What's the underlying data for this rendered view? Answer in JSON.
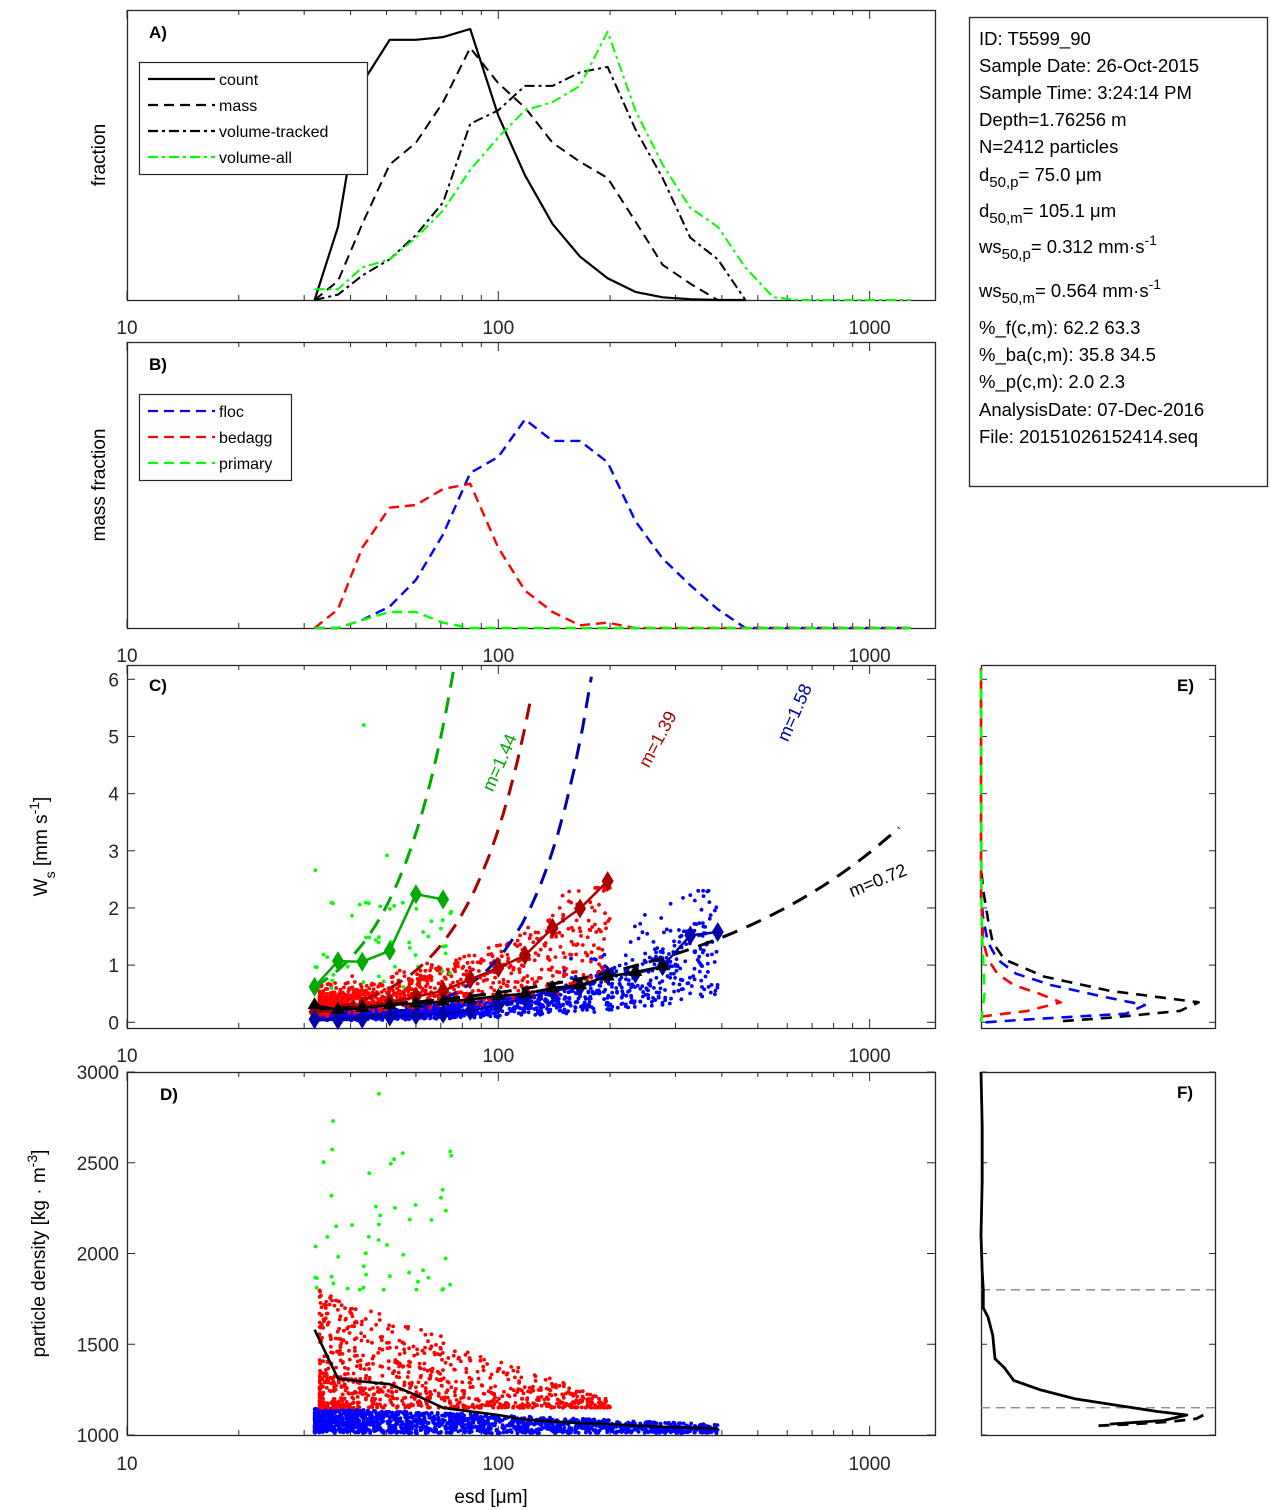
{
  "info_box": {
    "lines": [
      {
        "text": "ID: T5599_90"
      },
      {
        "text": "Sample Date: 26-Oct-2015"
      },
      {
        "text": "Sample Time:  3:24:14 PM"
      },
      {
        "text": "Depth=1.76256 m"
      },
      {
        "text": "N=2412 particles"
      },
      {
        "base": "d",
        "sub": "50,p",
        "rest": "=  75.0 μm"
      },
      {
        "base": "d",
        "sub": "50,m",
        "rest": "= 105.1 μm"
      },
      {
        "base": "ws",
        "sub": "50,p",
        "rest": "= 0.312 mm·s",
        "sup": "-1"
      },
      {
        "base": "ws",
        "sub": "50,m",
        "rest": "= 0.564 mm·s",
        "sup": "-1"
      },
      {
        "text": "%_f(c,m): 62.2 63.3"
      },
      {
        "text": "%_ba(c,m): 35.8 34.5"
      },
      {
        "text": "%_p(c,m): 2.0 2.3"
      },
      {
        "text": "AnalysisDate: 07-Dec-2016"
      },
      {
        "text": "File: 20151026152414.seq"
      }
    ]
  },
  "colors": {
    "black": "#000000",
    "green_bright": "#00ff00",
    "green_dark": "#00aa00",
    "red": "#ff0000",
    "dark_red": "#aa0000",
    "blue": "#0000ff",
    "dark_blue": "#0000aa",
    "gray_ref": "#808080"
  },
  "chart_data": [
    {
      "id": "A",
      "panel_label": "A)",
      "type": "line",
      "xscale": "log",
      "xlim": [
        10,
        1500
      ],
      "xticks": [
        10,
        100,
        1000
      ],
      "xtick_labels": [
        "10",
        "100",
        "1000"
      ],
      "ylabel": "fraction",
      "yticks": [],
      "ylim": [
        0,
        1.0
      ],
      "legend": {
        "placement": "top-left",
        "entries": [
          "count",
          "mass",
          "volume-tracked",
          "volume-all"
        ]
      },
      "x": [
        32,
        37,
        43,
        51,
        60,
        71,
        84,
        100,
        118,
        140,
        166,
        197,
        234,
        277,
        329,
        390,
        463,
        550,
        652,
        774,
        918,
        1089,
        1292
      ],
      "series": [
        {
          "name": "count",
          "style": "solid",
          "color": "#000000",
          "values": [
            0.0,
            0.27,
            0.8,
            0.96,
            0.96,
            0.97,
            1.0,
            0.68,
            0.46,
            0.28,
            0.16,
            0.08,
            0.03,
            0.01,
            0.003,
            0.0,
            0.0,
            null,
            null,
            null,
            null,
            null,
            null
          ]
        },
        {
          "name": "mass",
          "style": "dashed",
          "color": "#000000",
          "values": [
            0.0,
            0.07,
            0.28,
            0.5,
            0.58,
            0.73,
            0.93,
            0.8,
            0.71,
            0.58,
            0.51,
            0.45,
            0.29,
            0.13,
            0.06,
            0.0,
            0.0,
            null,
            null,
            null,
            null,
            null,
            null
          ]
        },
        {
          "name": "volume-tracked",
          "style": "dashdot",
          "color": "#000000",
          "values": [
            0.0,
            0.02,
            0.09,
            0.15,
            0.24,
            0.36,
            0.65,
            0.7,
            0.79,
            0.79,
            0.84,
            0.86,
            0.63,
            0.45,
            0.23,
            0.15,
            0.0,
            null,
            null,
            null,
            null,
            null,
            null
          ]
        },
        {
          "name": "volume-all",
          "style": "dashdot",
          "color": "#00ff00",
          "values": [
            0.04,
            0.04,
            0.12,
            0.15,
            0.23,
            0.33,
            0.48,
            0.6,
            0.7,
            0.73,
            0.79,
            0.99,
            0.7,
            0.5,
            0.34,
            0.27,
            0.12,
            0.01,
            0.0,
            0.0,
            0.0,
            0.0,
            0.0
          ]
        }
      ]
    },
    {
      "id": "B",
      "panel_label": "B)",
      "type": "line",
      "xscale": "log",
      "xlim": [
        10,
        1500
      ],
      "xticks": [
        10,
        100,
        1000
      ],
      "xtick_labels": [
        "10",
        "100",
        "1000"
      ],
      "ylabel": "mass fraction",
      "yticks": [],
      "ylim": [
        0,
        1.0
      ],
      "legend": {
        "placement": "top-left",
        "entries": [
          "floc",
          "bedagg",
          "primary"
        ]
      },
      "x": [
        32,
        37,
        43,
        51,
        60,
        71,
        84,
        100,
        118,
        140,
        166,
        197,
        234,
        277,
        329,
        390,
        463,
        550,
        652,
        774,
        918,
        1089,
        1292
      ],
      "series": [
        {
          "name": "floc",
          "style": "dashed",
          "color": "#0000ff",
          "values": [
            0.0,
            0.0,
            0.03,
            0.08,
            0.18,
            0.35,
            0.58,
            0.64,
            0.78,
            0.7,
            0.7,
            0.62,
            0.4,
            0.26,
            0.16,
            0.07,
            0.0,
            0.0,
            0.0,
            0.0,
            0.0,
            0.0,
            0.0
          ]
        },
        {
          "name": "bedagg",
          "style": "dashed",
          "color": "#ff0000",
          "values": [
            0.0,
            0.07,
            0.3,
            0.45,
            0.46,
            0.52,
            0.54,
            0.3,
            0.14,
            0.06,
            0.01,
            0.02,
            0.0,
            0.0,
            0.0,
            0.0,
            0.0,
            0.0,
            0.0,
            0.0,
            0.0,
            0.0,
            0.0
          ]
        },
        {
          "name": "primary",
          "style": "dashed",
          "color": "#00ff00",
          "values": [
            0.0,
            0.0,
            0.03,
            0.06,
            0.06,
            0.02,
            0.0,
            0.0,
            0.0,
            0.0,
            0.0,
            0.0,
            0.0,
            0.0,
            0.0,
            0.0,
            0.0,
            0.0,
            0.0,
            0.0,
            0.0,
            0.0,
            0.0
          ]
        }
      ]
    },
    {
      "id": "C",
      "panel_label": "C)",
      "type": "scatter",
      "xscale": "log",
      "xlim": [
        10,
        1500
      ],
      "xticks": [
        10,
        100,
        1000
      ],
      "xtick_labels": [
        "10",
        "100",
        "1000"
      ],
      "ylabel": "W_s [mm s^-1]",
      "ylim": [
        -0.1,
        6.25
      ],
      "yticks": [
        0,
        1,
        2,
        3,
        4,
        5,
        6
      ],
      "ytick_labels": [
        "0",
        "1",
        "2",
        "3",
        "4",
        "5",
        "6"
      ],
      "scatter_groups": [
        {
          "name": "floc",
          "color": "#0000ff",
          "count": 1500,
          "x_range": [
            32,
            380
          ],
          "y_typical": "0.05-1.0",
          "y_max": 2.3
        },
        {
          "name": "bedagg",
          "color": "#ff0000",
          "count": 860,
          "x_range": [
            32,
            200
          ],
          "y_typical": "0.1-1.4",
          "y_max": 2.35
        },
        {
          "name": "primary",
          "color": "#00ff00",
          "count": 52,
          "x_range": [
            32,
            75
          ],
          "y_typical": "0.5-2.0",
          "y_max": 5.2
        }
      ],
      "binned_means": [
        {
          "name": "primary",
          "color": "#00aa00",
          "x": [
            32,
            37,
            43,
            51,
            60,
            71
          ],
          "y": [
            0.62,
            1.07,
            1.06,
            1.25,
            2.24,
            2.15
          ]
        },
        {
          "name": "bedagg",
          "color": "#aa0000",
          "x": [
            32,
            37,
            43,
            51,
            60,
            71,
            84,
            100,
            118,
            140,
            166,
            197
          ],
          "y": [
            0.18,
            0.2,
            0.28,
            0.35,
            0.45,
            0.55,
            0.75,
            0.95,
            1.17,
            1.65,
            1.99,
            2.47
          ]
        },
        {
          "name": "floc",
          "color": "#0000aa",
          "x": [
            32,
            37,
            43,
            51,
            60,
            71,
            84,
            100,
            118,
            140,
            166,
            197,
            234,
            277,
            329,
            390
          ],
          "y": [
            0.05,
            0.04,
            0.06,
            0.1,
            0.12,
            0.15,
            0.2,
            0.3,
            0.42,
            0.55,
            0.62,
            0.82,
            0.85,
            0.98,
            1.52,
            1.58
          ]
        },
        {
          "name": "all",
          "color": "#000000",
          "x": [
            32,
            37,
            43,
            51,
            60,
            71,
            84,
            100,
            118,
            140,
            166,
            197,
            234,
            277
          ],
          "y": [
            0.3,
            0.22,
            0.25,
            0.3,
            0.33,
            0.36,
            0.4,
            0.46,
            0.5,
            0.6,
            0.65,
            0.8,
            0.88,
            0.98
          ]
        }
      ],
      "fits": [
        {
          "label": "m=1.44",
          "color": "#00aa00",
          "m": 1.44,
          "x_range": [
            32,
            140
          ],
          "y_at_xmin": 0.62
        },
        {
          "label": "m=1.39",
          "color": "#aa0000",
          "m": 1.39,
          "x_range": [
            32,
            430
          ],
          "y_at_xmin": 0.18
        },
        {
          "label": "m=1.58",
          "color": "#0000aa",
          "m": 1.58,
          "x_range": [
            32,
            800
          ],
          "y_at_xmin": 0.04
        },
        {
          "label": "m=0.72",
          "color": "#000000",
          "m": 0.72,
          "x_range": [
            32,
            1200
          ],
          "y_at_xmin": 0.22
        }
      ]
    },
    {
      "id": "D",
      "panel_label": "D)",
      "type": "scatter",
      "xscale": "log",
      "xlim": [
        10,
        1500
      ],
      "xticks": [
        10,
        100,
        1000
      ],
      "xtick_labels": [
        "10",
        "100",
        "1000"
      ],
      "xlabel": "esd [μm]",
      "ylabel": "particle density [kg · m^-3]",
      "ylim": [
        1000,
        3000
      ],
      "yticks": [
        1000,
        1500,
        2000,
        2500,
        3000
      ],
      "ytick_labels": [
        "1000",
        "1500",
        "2000",
        "2500",
        "3000"
      ],
      "scatter_groups": [
        {
          "name": "floc",
          "color": "#0000ff",
          "count": 1500,
          "x_range": [
            34,
            390
          ],
          "y_range": [
            1010,
            1150
          ]
        },
        {
          "name": "bedagg",
          "color": "#ff0000",
          "count": 860,
          "x_range": [
            33,
            200
          ],
          "y_range": [
            1150,
            1800
          ]
        },
        {
          "name": "primary",
          "color": "#00ff00",
          "count": 52,
          "x_range": [
            32,
            75
          ],
          "y_range": [
            1800,
            2880
          ]
        }
      ],
      "mean_line": {
        "color": "#000000",
        "x": [
          32,
          37,
          43,
          51,
          60,
          71,
          84,
          100,
          118,
          140,
          166,
          197,
          234,
          277,
          329,
          390
        ],
        "y": [
          1580,
          1310,
          1295,
          1280,
          1220,
          1150,
          1130,
          1110,
          1085,
          1075,
          1065,
          1060,
          1052,
          1045,
          1040,
          1035
        ]
      }
    },
    {
      "id": "E",
      "panel_label": "E)",
      "type": "line",
      "orientation": "horizontal-distribution",
      "ylim": [
        -0.1,
        6.25
      ],
      "yticks": [
        0,
        1,
        2,
        3,
        4,
        5,
        6
      ],
      "ytick_labels": [],
      "xlim": [
        0,
        1.0
      ],
      "series": [
        {
          "name": "all",
          "color": "#000000",
          "style": "dashed",
          "y": [
            0.02,
            0.08,
            0.2,
            0.35,
            0.55,
            0.8,
            1.1,
            1.4,
            1.8,
            2.3,
            2.7
          ],
          "x": [
            0.35,
            0.55,
            0.85,
            0.93,
            0.55,
            0.27,
            0.1,
            0.05,
            0.03,
            0.01,
            0.0
          ]
        },
        {
          "name": "floc",
          "color": "#0000ff",
          "style": "dashed",
          "y": [
            0.0,
            0.05,
            0.15,
            0.3,
            0.45,
            0.65,
            0.85,
            1.1,
            1.4,
            1.8,
            2.2
          ],
          "x": [
            0.02,
            0.2,
            0.62,
            0.7,
            0.52,
            0.3,
            0.15,
            0.07,
            0.03,
            0.01,
            0.0
          ]
        },
        {
          "name": "bedagg",
          "color": "#ff0000",
          "style": "dashed",
          "y": [
            0.1,
            0.2,
            0.35,
            0.5,
            0.65,
            0.85,
            1.1,
            1.4,
            1.8,
            2.2,
            6.2
          ],
          "x": [
            0.0,
            0.2,
            0.34,
            0.25,
            0.14,
            0.07,
            0.03,
            0.01,
            0.005,
            0.0,
            0.0
          ]
        },
        {
          "name": "primary",
          "color": "#00ff00",
          "style": "dashed",
          "y": [
            0.0,
            0.5,
            1.0,
            1.5,
            2.0,
            6.2
          ],
          "x": [
            0.0,
            0.015,
            0.01,
            0.005,
            0.002,
            0.0
          ]
        }
      ]
    },
    {
      "id": "F",
      "panel_label": "F)",
      "type": "line",
      "orientation": "horizontal-distribution",
      "ylim": [
        1000,
        3000
      ],
      "yticks": [
        1000,
        1500,
        2000,
        2500,
        3000
      ],
      "ytick_labels": [],
      "xlim": [
        0,
        1.0
      ],
      "reference_lines": [
        {
          "y": 1150,
          "color": "#808080",
          "style": "dashed"
        },
        {
          "y": 1800,
          "color": "#808080",
          "style": "dashed"
        }
      ],
      "series": [
        {
          "name": "density-distribution",
          "color": "#000000",
          "style": "solid",
          "y": [
            3000,
            2700,
            2400,
            2100,
            1900,
            1800,
            1700,
            1650,
            1550,
            1420,
            1370,
            1300,
            1250,
            1200,
            1160,
            1130,
            1110,
            1080,
            1060
          ],
          "x": [
            0.0,
            0.005,
            0.005,
            0.0,
            0.005,
            0.01,
            0.01,
            0.03,
            0.05,
            0.06,
            0.1,
            0.14,
            0.25,
            0.4,
            0.6,
            0.75,
            0.88,
            0.78,
            0.55
          ]
        },
        {
          "name": "density-fit",
          "color": "#000000",
          "style": "dashed",
          "y": [
            1110,
            1090,
            1075,
            1060,
            1050
          ],
          "x": [
            0.95,
            0.92,
            0.82,
            0.65,
            0.48
          ]
        }
      ]
    }
  ]
}
